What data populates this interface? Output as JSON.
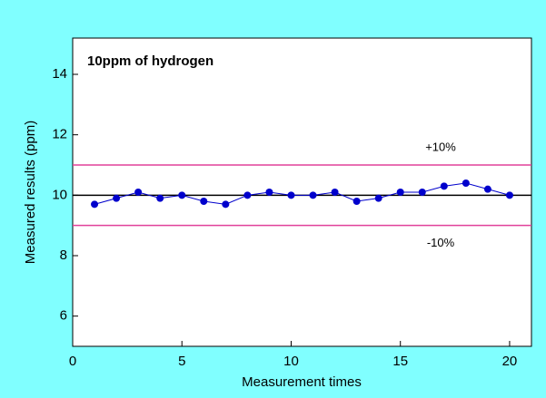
{
  "chart_data": {
    "type": "line",
    "title": "10ppm of hydrogen",
    "x_label": "Measurement times",
    "y_label": "Measured results (ppm)",
    "x": [
      1,
      2,
      3,
      4,
      5,
      6,
      7,
      8,
      9,
      10,
      11,
      12,
      13,
      14,
      15,
      16,
      17,
      18,
      19,
      20
    ],
    "series": [
      {
        "color": "#0000cc",
        "values": [
          9.7,
          9.9,
          10.1,
          9.9,
          10.0,
          9.8,
          9.7,
          10.0,
          10.1,
          10.0,
          10.0,
          10.1,
          9.8,
          9.9,
          10.1,
          10.1,
          10.3,
          10.4,
          10.2,
          10.0
        ]
      }
    ],
    "reference_lines": [
      {
        "value": 11,
        "color": "#e0409a",
        "label": "+10%"
      },
      {
        "value": 10,
        "color": "#000000"
      },
      {
        "value": 9,
        "color": "#e0409a",
        "label": "-10%"
      }
    ],
    "xlim": [
      0,
      21
    ],
    "xticks": [
      0,
      5,
      10,
      15,
      20
    ],
    "ylim": [
      5,
      15.2
    ],
    "yticks": [
      6,
      8,
      10,
      12,
      14
    ],
    "background": "#80ffff"
  }
}
